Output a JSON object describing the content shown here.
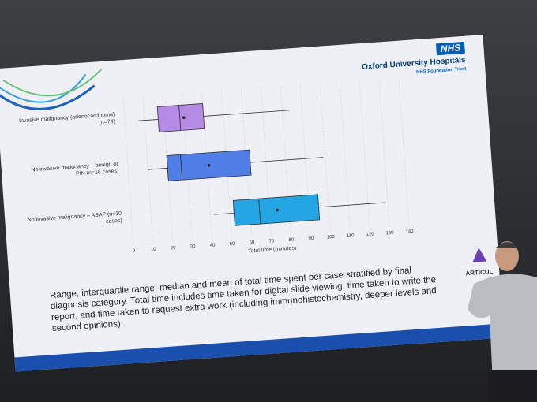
{
  "header": {
    "logo": "NHS",
    "organisation": "Oxford University Hospitals",
    "trust": "NHS Foundation Trust"
  },
  "chart_data": {
    "type": "box",
    "categories": [
      "Invasive malignancy (adenocarcinoma) (n=74)",
      "No invasive malignancy – benign or PIN (n=16 cases)",
      "No invasive malignancy – ASAP (n=10 cases)"
    ],
    "stats": [
      {
        "min": 7,
        "q1": 17,
        "median": 28,
        "mean": 30,
        "q3": 40,
        "max": 84
      },
      {
        "min": 10,
        "q1": 20,
        "median": 27,
        "mean": 41,
        "q3": 62,
        "max": 99
      },
      {
        "min": 42,
        "q1": 52,
        "median": 65,
        "mean": 74,
        "q3": 95,
        "max": 129
      }
    ],
    "colors": [
      "#b58be6",
      "#4f7fe6",
      "#25a6e4"
    ],
    "x_label": "Total time (minutes)",
    "xlim": [
      0,
      140
    ],
    "xticks": [
      0,
      10,
      20,
      30,
      40,
      50,
      60,
      70,
      80,
      90,
      100,
      110,
      120,
      130,
      140
    ],
    "grid": true
  },
  "caption": "Range, interquartile range, median and mean of total time spent per case stratified by final diagnosis category. Total time includes time taken for digital slide viewing, time taken to write the report, and time taken to request extra work (including immunohistochemistry, deeper levels and second opinions).",
  "side_logo": "ARTICUL"
}
